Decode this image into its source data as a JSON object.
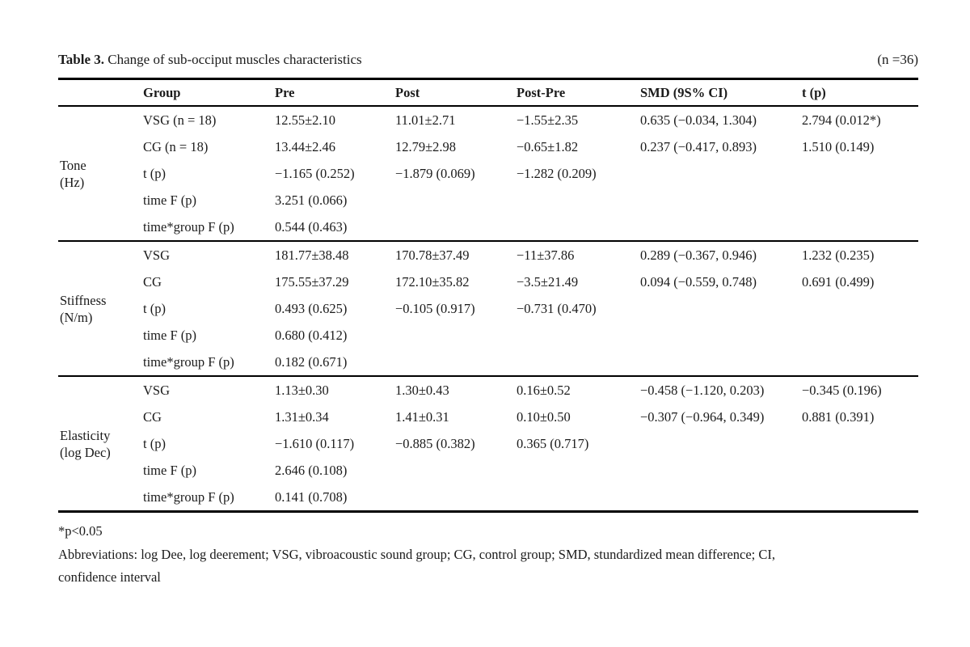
{
  "page": {
    "background": "#ffffff",
    "text_color": "#1b1b1b",
    "rule_color": "#000000"
  },
  "table": {
    "title_label": "Table 3.",
    "title_text": " Change of sub-occiput muscles characteristics",
    "sample_size": "(n =36)",
    "columns": [
      "",
      "Group",
      "Pre",
      "Post",
      "Post-Pre",
      "SMD (9S% CI)",
      "t (p)"
    ],
    "sections": [
      {
        "label_lines": [
          "Tone",
          "(Hz)"
        ],
        "rows": [
          [
            "VSG (n = 18)",
            "12.55±2.10",
            "11.01±2.71",
            "−1.55±2.35",
            "0.635 (−0.034, 1.304)",
            "2.794 (0.012*)"
          ],
          [
            "CG (n = 18)",
            "13.44±2.46",
            "12.79±2.98",
            "−0.65±1.82",
            "0.237 (−0.417, 0.893)",
            "1.510 (0.149)"
          ],
          [
            "t (p)",
            "−1.165 (0.252)",
            "−1.879 (0.069)",
            "−1.282 (0.209)",
            "",
            ""
          ],
          [
            "time F (p)",
            "3.251 (0.066)",
            "",
            "",
            "",
            ""
          ],
          [
            "time*group F (p)",
            "0.544 (0.463)",
            "",
            "",
            "",
            ""
          ]
        ]
      },
      {
        "label_lines": [
          "Stiffness",
          "(N/m)"
        ],
        "rows": [
          [
            "VSG",
            "181.77±38.48",
            "170.78±37.49",
            "−11±37.86",
            "0.289 (−0.367, 0.946)",
            "1.232 (0.235)"
          ],
          [
            "CG",
            "175.55±37.29",
            "172.10±35.82",
            "−3.5±21.49",
            "0.094 (−0.559, 0.748)",
            "0.691 (0.499)"
          ],
          [
            "t (p)",
            "0.493 (0.625)",
            "−0.105 (0.917)",
            "−0.731 (0.470)",
            "",
            ""
          ],
          [
            "time F (p)",
            "0.680 (0.412)",
            "",
            "",
            "",
            ""
          ],
          [
            "time*group F (p)",
            "0.182 (0.671)",
            "",
            "",
            "",
            ""
          ]
        ]
      },
      {
        "label_lines": [
          "Elasticity",
          "(log Dec)"
        ],
        "rows": [
          [
            "VSG",
            "1.13±0.30",
            "1.30±0.43",
            "0.16±0.52",
            "−0.458 (−1.120, 0.203)",
            "−0.345 (0.196)"
          ],
          [
            "CG",
            "1.31±0.34",
            "1.41±0.31",
            "0.10±0.50",
            "−0.307 (−0.964, 0.349)",
            "0.881 (0.391)"
          ],
          [
            "t (p)",
            "−1.610 (0.117)",
            "−0.885 (0.382)",
            "0.365 (0.717)",
            "",
            ""
          ],
          [
            "time F (p)",
            "2.646 (0.108)",
            "",
            "",
            "",
            ""
          ],
          [
            "time*group F (p)",
            "0.141 (0.708)",
            "",
            "",
            "",
            ""
          ]
        ]
      }
    ],
    "footnotes": [
      "*p<0.05",
      "Abbreviations: log Dee, log deerement; VSG, vibroacoustic sound group; CG, control group; SMD, stundardized mean difference; CI,",
      "confidence interval"
    ]
  }
}
